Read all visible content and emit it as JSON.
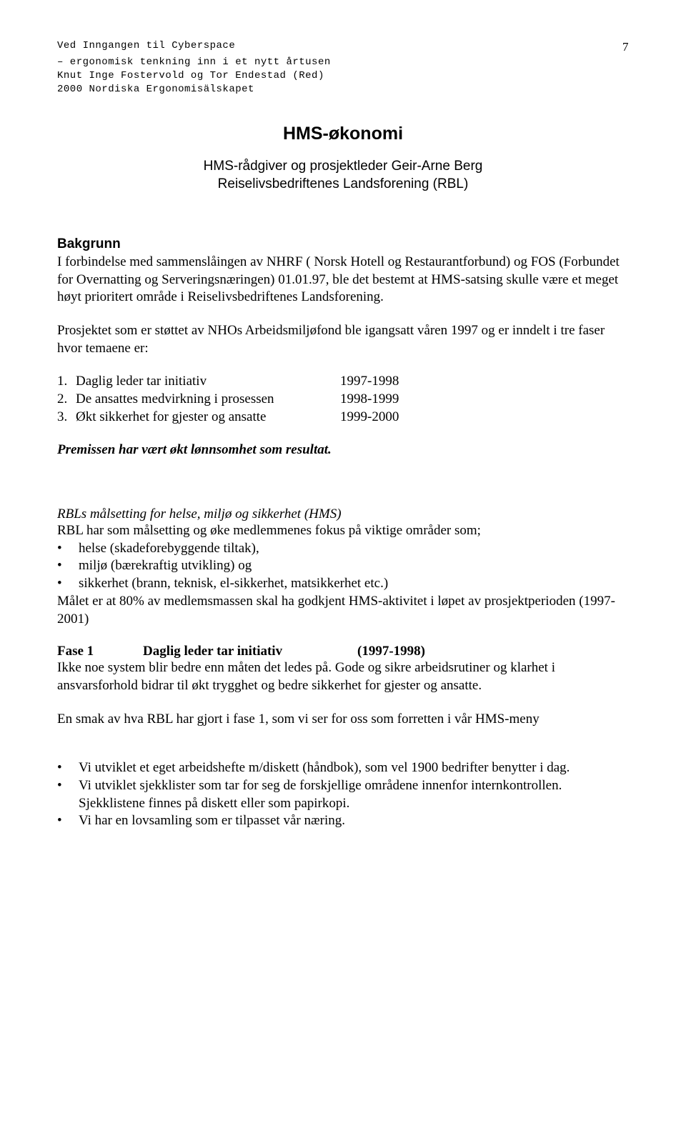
{
  "header": {
    "line1": "Ved Inngangen til Cyberspace",
    "line2": "– ergonomisk tenkning inn i et nytt årtusen",
    "line3": "Knut Inge Fostervold og Tor Endestad (Red)",
    "line4": "2000 Nordiska Ergonomisälskapet",
    "page_number": "7"
  },
  "title": "HMS-økonomi",
  "subtitle_line1": "HMS-rådgiver og prosjektleder Geir-Arne Berg",
  "subtitle_line2": "Reiselivsbedriftenes Landsforening (RBL)",
  "background": {
    "heading": "Bakgrunn",
    "p1": "I forbindelse med sammenslåingen av NHRF ( Norsk Hotell og Restaurantforbund) og FOS (Forbundet for Overnatting og Serveringsnæringen) 01.01.97, ble det bestemt at HMS-satsing skulle være et meget høyt prioritert område i Reiselivsbedriftenes Landsforening.",
    "p2": "Prosjektet som er støttet av NHOs Arbeidsmiljøfond ble igangsatt våren 1997 og er inndelt i tre faser hvor temaene er:"
  },
  "phases": [
    {
      "num": "1.",
      "label": "Daglig leder tar initiativ",
      "years": "1997-1998"
    },
    {
      "num": "2.",
      "label": "De ansattes medvirkning i prosessen",
      "years": "1998-1999"
    },
    {
      "num": "3.",
      "label": "Økt sikkerhet for gjester og ansatte",
      "years": "1999-2000"
    }
  ],
  "premise": "Premissen har vært økt lønnsomhet som resultat.",
  "rbl_goal": {
    "heading": "RBLs målsetting for helse, miljø og sikkerhet (HMS)",
    "intro": "RBL har som målsetting og øke medlemmenes fokus på viktige områder som;",
    "items": [
      "helse  (skadeforebyggende tiltak),",
      "miljø  (bærekraftig utvikling) og",
      "sikkerhet (brann, teknisk, el-sikkerhet, matsikkerhet etc.)"
    ],
    "goal": "Målet er at 80% av medlemsmassen skal ha godkjent HMS-aktivitet i løpet av prosjektperioden (1997-2001)"
  },
  "phase1": {
    "col1": "Fase 1",
    "col2": "Daglig leder tar initiativ",
    "col3": "(1997-1998)",
    "p1": "Ikke noe system blir bedre enn måten det ledes på. Gode og sikre arbeidsrutiner og klarhet i ansvarsforhold bidrar til økt trygghet og bedre sikkerhet for gjester og ansatte.",
    "p2": "En smak av hva RBL har gjort i fase 1, som vi ser for oss som forretten i vår HMS-meny",
    "items": [
      "Vi utviklet et eget arbeidshefte m/diskett (håndbok), som vel 1900 bedrifter benytter i dag.",
      "Vi utviklet sjekklister som tar for seg de forskjellige områdene innenfor internkontrollen.",
      "Sjekklistene finnes på diskett eller som papirkopi.",
      "Vi har en lovsamling som er tilpasset vår næring."
    ]
  }
}
